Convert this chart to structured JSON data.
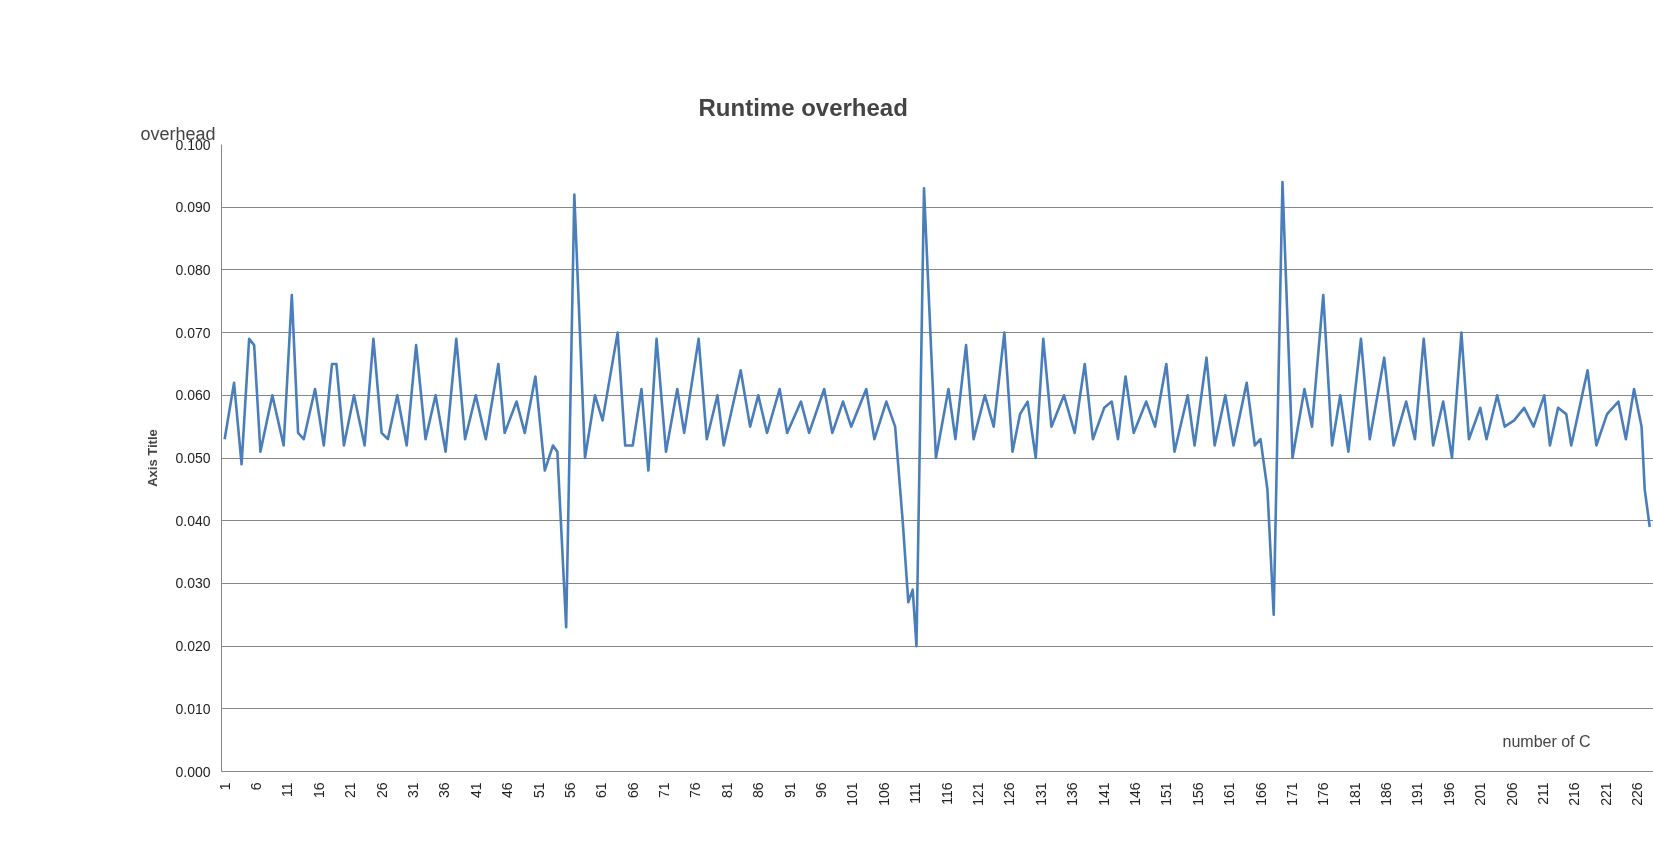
{
  "chart_data": {
    "type": "line",
    "title": "Runtime overhead",
    "ylabel": "Axis Title",
    "xlabel": "number of C",
    "annotations": [
      "overhead"
    ],
    "x": [
      1,
      2.5,
      3.7,
      4.9,
      5.7,
      6.7,
      8.6,
      10.4,
      11.7,
      12.7,
      13.6,
      15.4,
      16.8,
      18.1,
      18.8,
      20,
      21.6,
      23.3,
      24.7,
      26,
      27,
      28.5,
      30,
      31.5,
      33,
      34.6,
      36.2,
      37.9,
      39.3,
      41,
      42.6,
      44.6,
      45.6,
      47.5,
      48.8,
      50.5,
      52,
      53.3,
      54,
      55.4,
      56.7,
      58.4,
      60,
      61.2,
      63.6,
      64.8,
      66,
      67.4,
      68.5,
      69.8,
      71.3,
      73.1,
      74.2,
      76.5,
      77.8,
      79.5,
      80.5,
      83.2,
      84.7,
      86,
      87.4,
      89.4,
      90.6,
      92.8,
      94.1,
      96.5,
      97.8,
      99.5,
      100.8,
      103.2,
      104.5,
      106.4,
      107.8,
      109,
      109.9,
      110.6,
      111.2,
      112.4,
      114.3,
      116.3,
      117.4,
      119.1,
      120.3,
      122.1,
      123.5,
      125.2,
      126.5,
      127.7,
      128.9,
      130.2,
      131.4,
      132.7,
      134.7,
      136.4,
      138,
      139.3,
      141.1,
      142.3,
      143.3,
      144.5,
      145.8,
      147.8,
      149.2,
      151,
      152.3,
      154.4,
      155.5,
      157.4,
      158.7,
      160.4,
      161.7,
      163.8,
      165.1,
      166,
      167.1,
      168.1,
      169.5,
      171.1,
      173,
      174.2,
      176,
      177.4,
      178.7,
      180,
      182,
      183.4,
      185.7,
      187.2,
      189.2,
      190.6,
      192,
      193.5,
      195.1,
      196.5,
      198,
      199.2,
      201,
      202,
      203.7,
      204.9,
      206.4,
      208,
      209.5,
      211.2,
      212.1,
      213.4,
      214.7,
      215.5,
      218.1,
      219.5,
      221.2,
      223,
      224.2,
      225.5,
      226.7,
      227.2,
      228
    ],
    "series": [
      {
        "color": "#4a7ebb",
        "values": [
          0.053,
          0.062,
          0.049,
          0.069,
          0.068,
          0.051,
          0.06,
          0.052,
          0.076,
          0.054,
          0.053,
          0.061,
          0.052,
          0.065,
          0.065,
          0.052,
          0.06,
          0.052,
          0.069,
          0.054,
          0.053,
          0.06,
          0.052,
          0.068,
          0.053,
          0.06,
          0.051,
          0.069,
          0.053,
          0.06,
          0.053,
          0.065,
          0.054,
          0.059,
          0.054,
          0.063,
          0.048,
          0.052,
          0.051,
          0.023,
          0.092,
          0.05,
          0.06,
          0.056,
          0.07,
          0.052,
          0.052,
          0.061,
          0.048,
          0.069,
          0.051,
          0.061,
          0.054,
          0.069,
          0.053,
          0.06,
          0.052,
          0.064,
          0.055,
          0.06,
          0.054,
          0.061,
          0.054,
          0.059,
          0.054,
          0.061,
          0.054,
          0.059,
          0.055,
          0.061,
          0.053,
          0.059,
          0.055,
          0.04,
          0.027,
          0.029,
          0.02,
          0.093,
          0.05,
          0.061,
          0.053,
          0.068,
          0.053,
          0.06,
          0.055,
          0.07,
          0.051,
          0.057,
          0.059,
          0.05,
          0.069,
          0.055,
          0.06,
          0.054,
          0.065,
          0.053,
          0.058,
          0.059,
          0.053,
          0.063,
          0.054,
          0.059,
          0.055,
          0.065,
          0.051,
          0.06,
          0.052,
          0.066,
          0.052,
          0.06,
          0.052,
          0.062,
          0.052,
          0.053,
          0.045,
          0.025,
          0.094,
          0.05,
          0.061,
          0.055,
          0.076,
          0.052,
          0.06,
          0.051,
          0.069,
          0.053,
          0.066,
          0.052,
          0.059,
          0.053,
          0.069,
          0.052,
          0.059,
          0.05,
          0.07,
          0.053,
          0.058,
          0.053,
          0.06,
          0.055,
          0.056,
          0.058,
          0.055,
          0.06,
          0.052,
          0.058,
          0.057,
          0.052,
          0.064,
          0.052,
          0.057,
          0.059,
          0.053,
          0.061,
          0.055,
          0.045,
          0.039
        ]
      }
    ],
    "xlim": [
      0.5,
      228.6
    ],
    "ylim": [
      0,
      0.1
    ],
    "xticks": [
      1,
      6,
      11,
      16,
      21,
      26,
      31,
      36,
      41,
      46,
      51,
      56,
      61,
      66,
      71,
      76,
      81,
      86,
      91,
      96,
      101,
      106,
      111,
      116,
      121,
      126,
      131,
      136,
      141,
      146,
      151,
      156,
      161,
      166,
      171,
      176,
      181,
      186,
      191,
      196,
      201,
      206,
      211,
      216,
      221,
      226
    ],
    "yticks": [
      {
        "value": 0,
        "label": "0.000"
      },
      {
        "value": 0.01,
        "label": "0.010"
      },
      {
        "value": 0.02,
        "label": "0.020"
      },
      {
        "value": 0.03,
        "label": "0.030"
      },
      {
        "value": 0.04,
        "label": "0.040"
      },
      {
        "value": 0.05,
        "label": "0.050"
      },
      {
        "value": 0.06,
        "label": "0.060"
      },
      {
        "value": 0.07,
        "label": "0.070"
      },
      {
        "value": 0.08,
        "label": "0.080"
      },
      {
        "value": 0.09,
        "label": "0.090"
      },
      {
        "value": 0.1,
        "label": "0.100"
      }
    ],
    "grid": "y",
    "marker": "none",
    "line_style": "solid"
  }
}
